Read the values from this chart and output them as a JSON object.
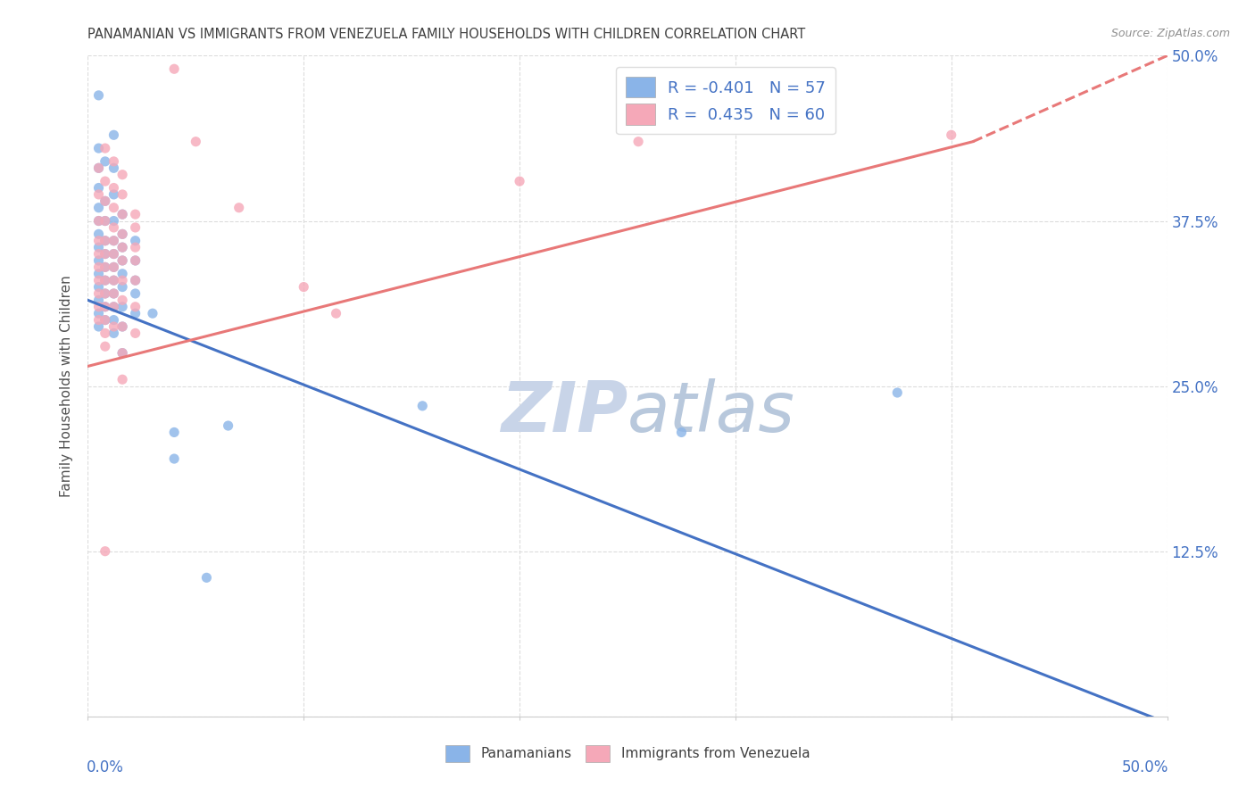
{
  "title": "PANAMANIAN VS IMMIGRANTS FROM VENEZUELA FAMILY HOUSEHOLDS WITH CHILDREN CORRELATION CHART",
  "source": "Source: ZipAtlas.com",
  "ylabel": "Family Households with Children",
  "blue_r": -0.401,
  "blue_n": 57,
  "pink_r": 0.435,
  "pink_n": 60,
  "xlim": [
    0.0,
    0.5
  ],
  "ylim": [
    0.0,
    0.5
  ],
  "yticks": [
    0.0,
    0.125,
    0.25,
    0.375,
    0.5
  ],
  "blue_line": {
    "x0": 0.0,
    "y0": 0.315,
    "x1": 0.5,
    "y1": -0.005
  },
  "pink_line_solid": {
    "x0": 0.0,
    "y0": 0.265,
    "x1": 0.41,
    "y1": 0.435
  },
  "pink_line_dash": {
    "x0": 0.41,
    "y0": 0.435,
    "x1": 0.5,
    "y1": 0.5
  },
  "blue_scatter": [
    [
      0.005,
      0.47
    ],
    [
      0.005,
      0.43
    ],
    [
      0.005,
      0.415
    ],
    [
      0.005,
      0.4
    ],
    [
      0.005,
      0.385
    ],
    [
      0.005,
      0.375
    ],
    [
      0.005,
      0.365
    ],
    [
      0.005,
      0.355
    ],
    [
      0.005,
      0.345
    ],
    [
      0.005,
      0.335
    ],
    [
      0.005,
      0.325
    ],
    [
      0.005,
      0.315
    ],
    [
      0.005,
      0.305
    ],
    [
      0.005,
      0.295
    ],
    [
      0.008,
      0.42
    ],
    [
      0.008,
      0.39
    ],
    [
      0.008,
      0.375
    ],
    [
      0.008,
      0.36
    ],
    [
      0.008,
      0.35
    ],
    [
      0.008,
      0.34
    ],
    [
      0.008,
      0.33
    ],
    [
      0.008,
      0.32
    ],
    [
      0.008,
      0.31
    ],
    [
      0.008,
      0.3
    ],
    [
      0.012,
      0.44
    ],
    [
      0.012,
      0.415
    ],
    [
      0.012,
      0.395
    ],
    [
      0.012,
      0.375
    ],
    [
      0.012,
      0.36
    ],
    [
      0.012,
      0.35
    ],
    [
      0.012,
      0.34
    ],
    [
      0.012,
      0.33
    ],
    [
      0.012,
      0.32
    ],
    [
      0.012,
      0.31
    ],
    [
      0.012,
      0.3
    ],
    [
      0.012,
      0.29
    ],
    [
      0.016,
      0.38
    ],
    [
      0.016,
      0.365
    ],
    [
      0.016,
      0.355
    ],
    [
      0.016,
      0.345
    ],
    [
      0.016,
      0.335
    ],
    [
      0.016,
      0.325
    ],
    [
      0.016,
      0.31
    ],
    [
      0.016,
      0.295
    ],
    [
      0.016,
      0.275
    ],
    [
      0.022,
      0.36
    ],
    [
      0.022,
      0.345
    ],
    [
      0.022,
      0.33
    ],
    [
      0.022,
      0.32
    ],
    [
      0.022,
      0.305
    ],
    [
      0.03,
      0.305
    ],
    [
      0.04,
      0.215
    ],
    [
      0.04,
      0.195
    ],
    [
      0.055,
      0.105
    ],
    [
      0.065,
      0.22
    ],
    [
      0.155,
      0.235
    ],
    [
      0.275,
      0.215
    ],
    [
      0.375,
      0.245
    ]
  ],
  "pink_scatter": [
    [
      0.005,
      0.415
    ],
    [
      0.005,
      0.395
    ],
    [
      0.005,
      0.375
    ],
    [
      0.005,
      0.36
    ],
    [
      0.005,
      0.35
    ],
    [
      0.005,
      0.34
    ],
    [
      0.005,
      0.33
    ],
    [
      0.005,
      0.32
    ],
    [
      0.005,
      0.31
    ],
    [
      0.005,
      0.3
    ],
    [
      0.008,
      0.43
    ],
    [
      0.008,
      0.405
    ],
    [
      0.008,
      0.39
    ],
    [
      0.008,
      0.375
    ],
    [
      0.008,
      0.36
    ],
    [
      0.008,
      0.35
    ],
    [
      0.008,
      0.34
    ],
    [
      0.008,
      0.33
    ],
    [
      0.008,
      0.32
    ],
    [
      0.008,
      0.31
    ],
    [
      0.008,
      0.3
    ],
    [
      0.008,
      0.29
    ],
    [
      0.008,
      0.28
    ],
    [
      0.008,
      0.125
    ],
    [
      0.012,
      0.42
    ],
    [
      0.012,
      0.4
    ],
    [
      0.012,
      0.385
    ],
    [
      0.012,
      0.37
    ],
    [
      0.012,
      0.36
    ],
    [
      0.012,
      0.35
    ],
    [
      0.012,
      0.34
    ],
    [
      0.012,
      0.33
    ],
    [
      0.012,
      0.32
    ],
    [
      0.012,
      0.31
    ],
    [
      0.012,
      0.295
    ],
    [
      0.016,
      0.41
    ],
    [
      0.016,
      0.395
    ],
    [
      0.016,
      0.38
    ],
    [
      0.016,
      0.365
    ],
    [
      0.016,
      0.355
    ],
    [
      0.016,
      0.345
    ],
    [
      0.016,
      0.33
    ],
    [
      0.016,
      0.315
    ],
    [
      0.016,
      0.295
    ],
    [
      0.016,
      0.275
    ],
    [
      0.016,
      0.255
    ],
    [
      0.022,
      0.38
    ],
    [
      0.022,
      0.37
    ],
    [
      0.022,
      0.355
    ],
    [
      0.022,
      0.345
    ],
    [
      0.022,
      0.33
    ],
    [
      0.022,
      0.31
    ],
    [
      0.022,
      0.29
    ],
    [
      0.04,
      0.49
    ],
    [
      0.05,
      0.435
    ],
    [
      0.07,
      0.385
    ],
    [
      0.1,
      0.325
    ],
    [
      0.115,
      0.305
    ],
    [
      0.2,
      0.405
    ],
    [
      0.255,
      0.435
    ],
    [
      0.4,
      0.44
    ]
  ],
  "blue_color": "#8AB4E8",
  "pink_color": "#F5A8B8",
  "blue_line_color": "#4472C4",
  "pink_line_color": "#E87878",
  "grid_color": "#DCDCDC",
  "title_color": "#404040",
  "axis_label_color": "#4472C4",
  "legend_label_color": "#4472C4"
}
